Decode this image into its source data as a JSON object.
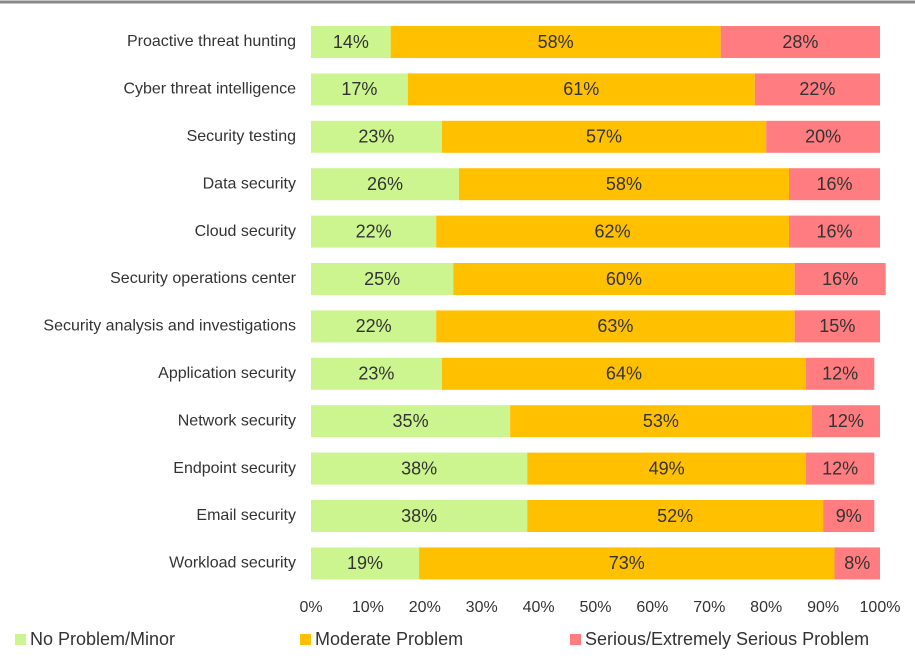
{
  "chart_data": {
    "type": "stacked-bar-horizontal",
    "categories": [
      "Proactive threat hunting",
      "Cyber threat intelligence",
      "Security testing",
      "Data security",
      "Cloud security",
      "Security operations center",
      "Security analysis and investigations",
      "Application security",
      "Network security",
      "Endpoint security",
      "Email security",
      "Workload security"
    ],
    "series": [
      {
        "name": "No Problem/Minor",
        "color": "#ccf58f",
        "values": [
          14,
          17,
          23,
          26,
          22,
          25,
          22,
          23,
          35,
          38,
          38,
          19
        ],
        "value_labels": [
          "14%",
          "17%",
          "23%",
          "26%",
          "22%",
          "25%",
          "22%",
          "23%",
          "35%",
          "38%",
          "38%",
          "19%"
        ]
      },
      {
        "name": "Moderate Problem",
        "color": "#ffc000",
        "values": [
          58,
          61,
          57,
          58,
          62,
          60,
          63,
          64,
          53,
          49,
          52,
          73
        ],
        "value_labels": [
          "58%",
          "61%",
          "57%",
          "58%",
          "62%",
          "60%",
          "63%",
          "64%",
          "53%",
          "49%",
          "52%",
          "73%"
        ]
      },
      {
        "name": "Serious/Extremely Serious Problem",
        "color": "#ff7c80",
        "values": [
          28,
          22,
          20,
          16,
          16,
          16,
          15,
          12,
          12,
          12,
          9,
          8
        ],
        "value_labels": [
          "28%",
          "22%",
          "20%",
          "16%",
          "16%",
          "16%",
          "15%",
          "12%",
          "12%",
          "12%",
          "9%",
          "8%"
        ]
      }
    ],
    "xlim": [
      0,
      100
    ],
    "xticks": [
      {
        "value": 0,
        "label": "0%"
      },
      {
        "value": 10,
        "label": "10%"
      },
      {
        "value": 20,
        "label": "20%"
      },
      {
        "value": 30,
        "label": "30%"
      },
      {
        "value": 40,
        "label": "40%"
      },
      {
        "value": 50,
        "label": "50%"
      },
      {
        "value": 60,
        "label": "60%"
      },
      {
        "value": 70,
        "label": "70%"
      },
      {
        "value": 80,
        "label": "80%"
      },
      {
        "value": 90,
        "label": "90%"
      },
      {
        "value": 100,
        "label": "100%"
      }
    ],
    "legend": "bottom"
  }
}
